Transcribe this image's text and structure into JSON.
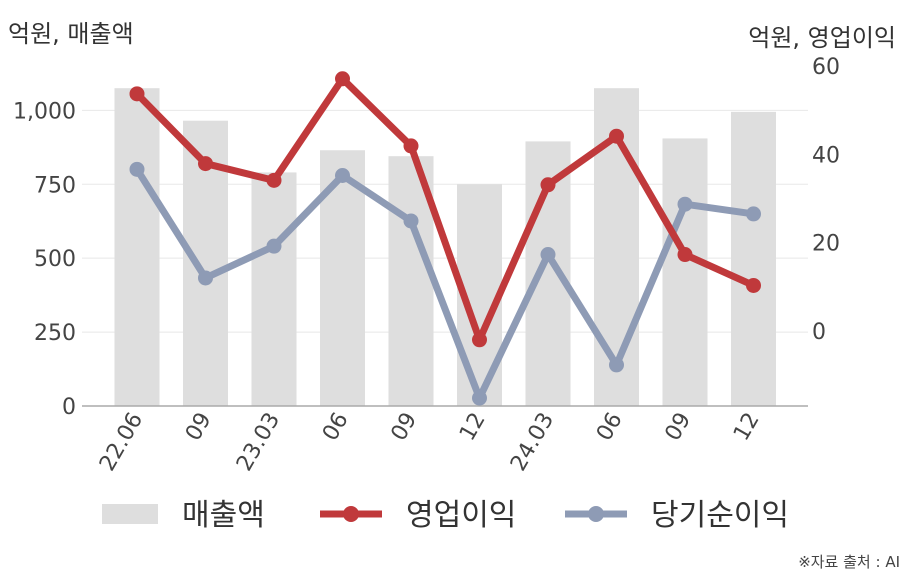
{
  "left_unit_label": "억원, 매출액",
  "right_unit_label": "억원, 영업이익",
  "source_text": "※자료 출처 : AI",
  "chart_data": {
    "type": "bar+line",
    "categories": [
      "22.06",
      "09",
      "23.03",
      "06",
      "09",
      "12",
      "24.03",
      "06",
      "09",
      "12"
    ],
    "y_left": {
      "range": [
        0,
        1150
      ],
      "ticks": [
        0,
        250,
        500,
        750,
        1000
      ],
      "tick_labels": [
        "0",
        "250",
        "500",
        "750",
        "1,000"
      ]
    },
    "y_right": {
      "range": [
        -17,
        60
      ],
      "ticks": [
        0,
        20,
        40,
        60
      ],
      "tick_labels": [
        "0",
        "20",
        "40",
        "60"
      ]
    },
    "series": [
      {
        "name": "매출액",
        "kind": "bar",
        "axis": "left",
        "color": "#dedede",
        "values": [
          1075,
          965,
          790,
          865,
          845,
          750,
          895,
          1075,
          905,
          995
        ]
      },
      {
        "name": "영업이익",
        "kind": "line",
        "axis": "right",
        "color": "#c0393b",
        "values": [
          53.7,
          37.9,
          34.1,
          57.1,
          41.9,
          -2.0,
          33.1,
          44.1,
          17.3,
          10.3
        ]
      },
      {
        "name": "당기순이익",
        "kind": "line",
        "axis": "right",
        "color": "#8e9bb5",
        "values": [
          36.6,
          12.0,
          19.2,
          35.2,
          24.9,
          -15.2,
          17.3,
          -7.7,
          28.7,
          26.5
        ]
      }
    ],
    "grid": true,
    "legend_position": "bottom"
  }
}
